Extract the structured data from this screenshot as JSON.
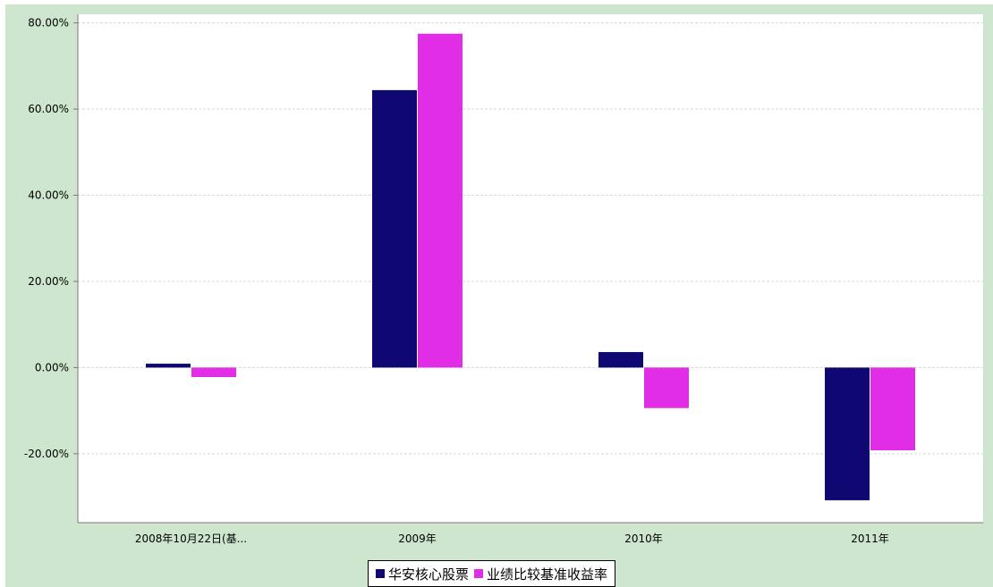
{
  "colors": {
    "frame_background": "#cde6cd",
    "plot_background": "#ffffff",
    "axis": "#7a7a7a",
    "gridline": "#d8d8d8"
  },
  "chart_data": {
    "type": "bar",
    "categories": [
      "2008年10月22日(基...",
      "2009年",
      "2010年",
      "2011年"
    ],
    "series": [
      {
        "name": "华安核心股票",
        "color": "#0f0873",
        "values": [
          0.9,
          64.4,
          3.6,
          -30.8
        ]
      },
      {
        "name": "业绩比较基准收益率",
        "color": "#e12ee6",
        "values": [
          -2.2,
          77.5,
          -9.4,
          -19.2
        ]
      }
    ],
    "ylim": [
      -36,
      82
    ],
    "yticks": [
      80,
      60,
      40,
      20,
      0,
      -20
    ],
    "ytick_labels": [
      "80.00%",
      "60.00%",
      "40.00%",
      "20.00%",
      "0.00%",
      "-20.00%"
    ],
    "grid": true,
    "legend_position": "bottom-center"
  }
}
